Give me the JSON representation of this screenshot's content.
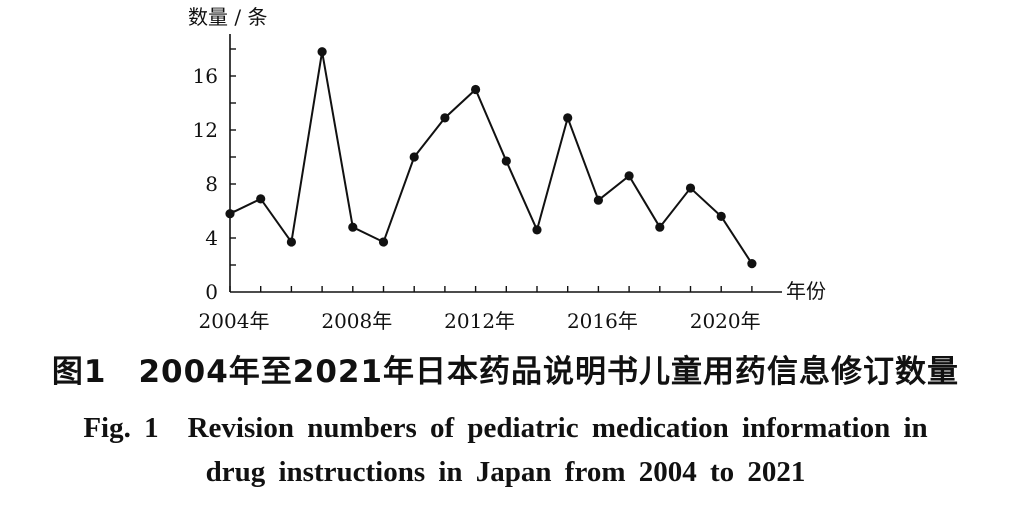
{
  "chart_data": {
    "type": "line",
    "ylabel": "数量 / 条",
    "xlabel": "年份",
    "ylim": [
      0,
      18
    ],
    "yticks": [
      0,
      4,
      8,
      12,
      16
    ],
    "xticks": [
      "2004年",
      "2008年",
      "2012年",
      "2016年",
      "2020年"
    ],
    "grid": false,
    "x": [
      2004,
      2005,
      2006,
      2007,
      2008,
      2009,
      2010,
      2011,
      2012,
      2013,
      2014,
      2015,
      2016,
      2017,
      2018,
      2019,
      2020,
      2021
    ],
    "values": [
      5.8,
      6.9,
      3.7,
      17.8,
      4.8,
      3.7,
      10.0,
      12.9,
      15.0,
      9.7,
      4.6,
      12.9,
      6.8,
      8.6,
      4.8,
      7.7,
      5.6,
      2.1
    ]
  },
  "caption": {
    "zh": "图1　2004年至2021年日本药品说明书儿童用药信息修订数量",
    "en_line1": "Fig. 1　Revision numbers of pediatric medication information in",
    "en_line2": "drug instructions in Japan from 2004 to 2021"
  }
}
